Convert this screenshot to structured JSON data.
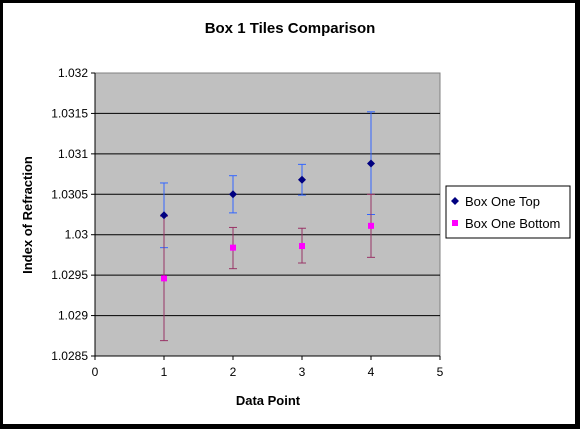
{
  "chart_data": {
    "type": "scatter",
    "title": "Box 1 Tiles Comparison",
    "xlabel": "Data Point",
    "ylabel": "Index of Refraction",
    "xlim": [
      0,
      5
    ],
    "ylim": [
      1.0285,
      1.032
    ],
    "x_ticks": [
      "0",
      "1",
      "2",
      "3",
      "4",
      "5"
    ],
    "y_ticks": [
      "1.0285",
      "1.029",
      "1.0295",
      "1.03",
      "1.0305",
      "1.031",
      "1.0315",
      "1.032"
    ],
    "grid": true,
    "legend_position": "right",
    "plot_background": "#c0c0c0",
    "series": [
      {
        "name": "Box One Top",
        "marker": "diamond",
        "color": "#000080",
        "error_color": "#3366ff",
        "points": [
          {
            "x": 1,
            "y": 1.03024,
            "low": 1.02984,
            "high": 1.03064
          },
          {
            "x": 2,
            "y": 1.0305,
            "low": 1.03027,
            "high": 1.03073
          },
          {
            "x": 3,
            "y": 1.03068,
            "low": 1.03049,
            "high": 1.03087
          },
          {
            "x": 4,
            "y": 1.03088,
            "low": 1.03025,
            "high": 1.03152
          }
        ]
      },
      {
        "name": "Box One Bottom",
        "marker": "square",
        "color": "#ff00ff",
        "error_color": "#993366",
        "points": [
          {
            "x": 1,
            "y": 1.02946,
            "low": 1.02869,
            "high": 1.03023
          },
          {
            "x": 2,
            "y": 1.02984,
            "low": 1.02958,
            "high": 1.03009
          },
          {
            "x": 3,
            "y": 1.02986,
            "low": 1.02965,
            "high": 1.03008
          },
          {
            "x": 4,
            "y": 1.03011,
            "low": 1.02972,
            "high": 1.0305
          }
        ]
      }
    ]
  }
}
